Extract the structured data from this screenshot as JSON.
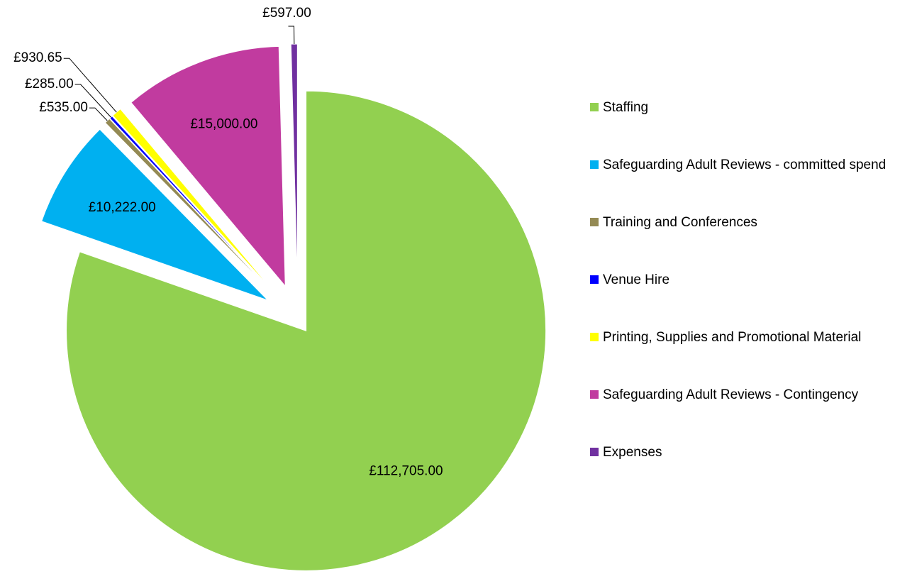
{
  "chart_data": {
    "type": "pie",
    "categories": [
      "Staffing",
      "Safeguarding Adult Reviews - committed spend",
      "Training and Conferences",
      "Venue Hire",
      "Printing, Supplies and Promotional Material",
      "Safeguarding Adult Reviews - Contingency",
      "Expenses"
    ],
    "values": [
      112705,
      10222,
      535,
      285,
      930.65,
      15000,
      597
    ],
    "value_labels": [
      "£112,705.00",
      "£10,222.00",
      "£535.00",
      "£285.00",
      "£930.65",
      "£15,000.00",
      "£597.00"
    ],
    "colors": [
      "#92d050",
      "#00b0f0",
      "#948a54",
      "#0000ff",
      "#ffff00",
      "#c13b9f",
      "#7030a0"
    ],
    "legend": "right"
  }
}
